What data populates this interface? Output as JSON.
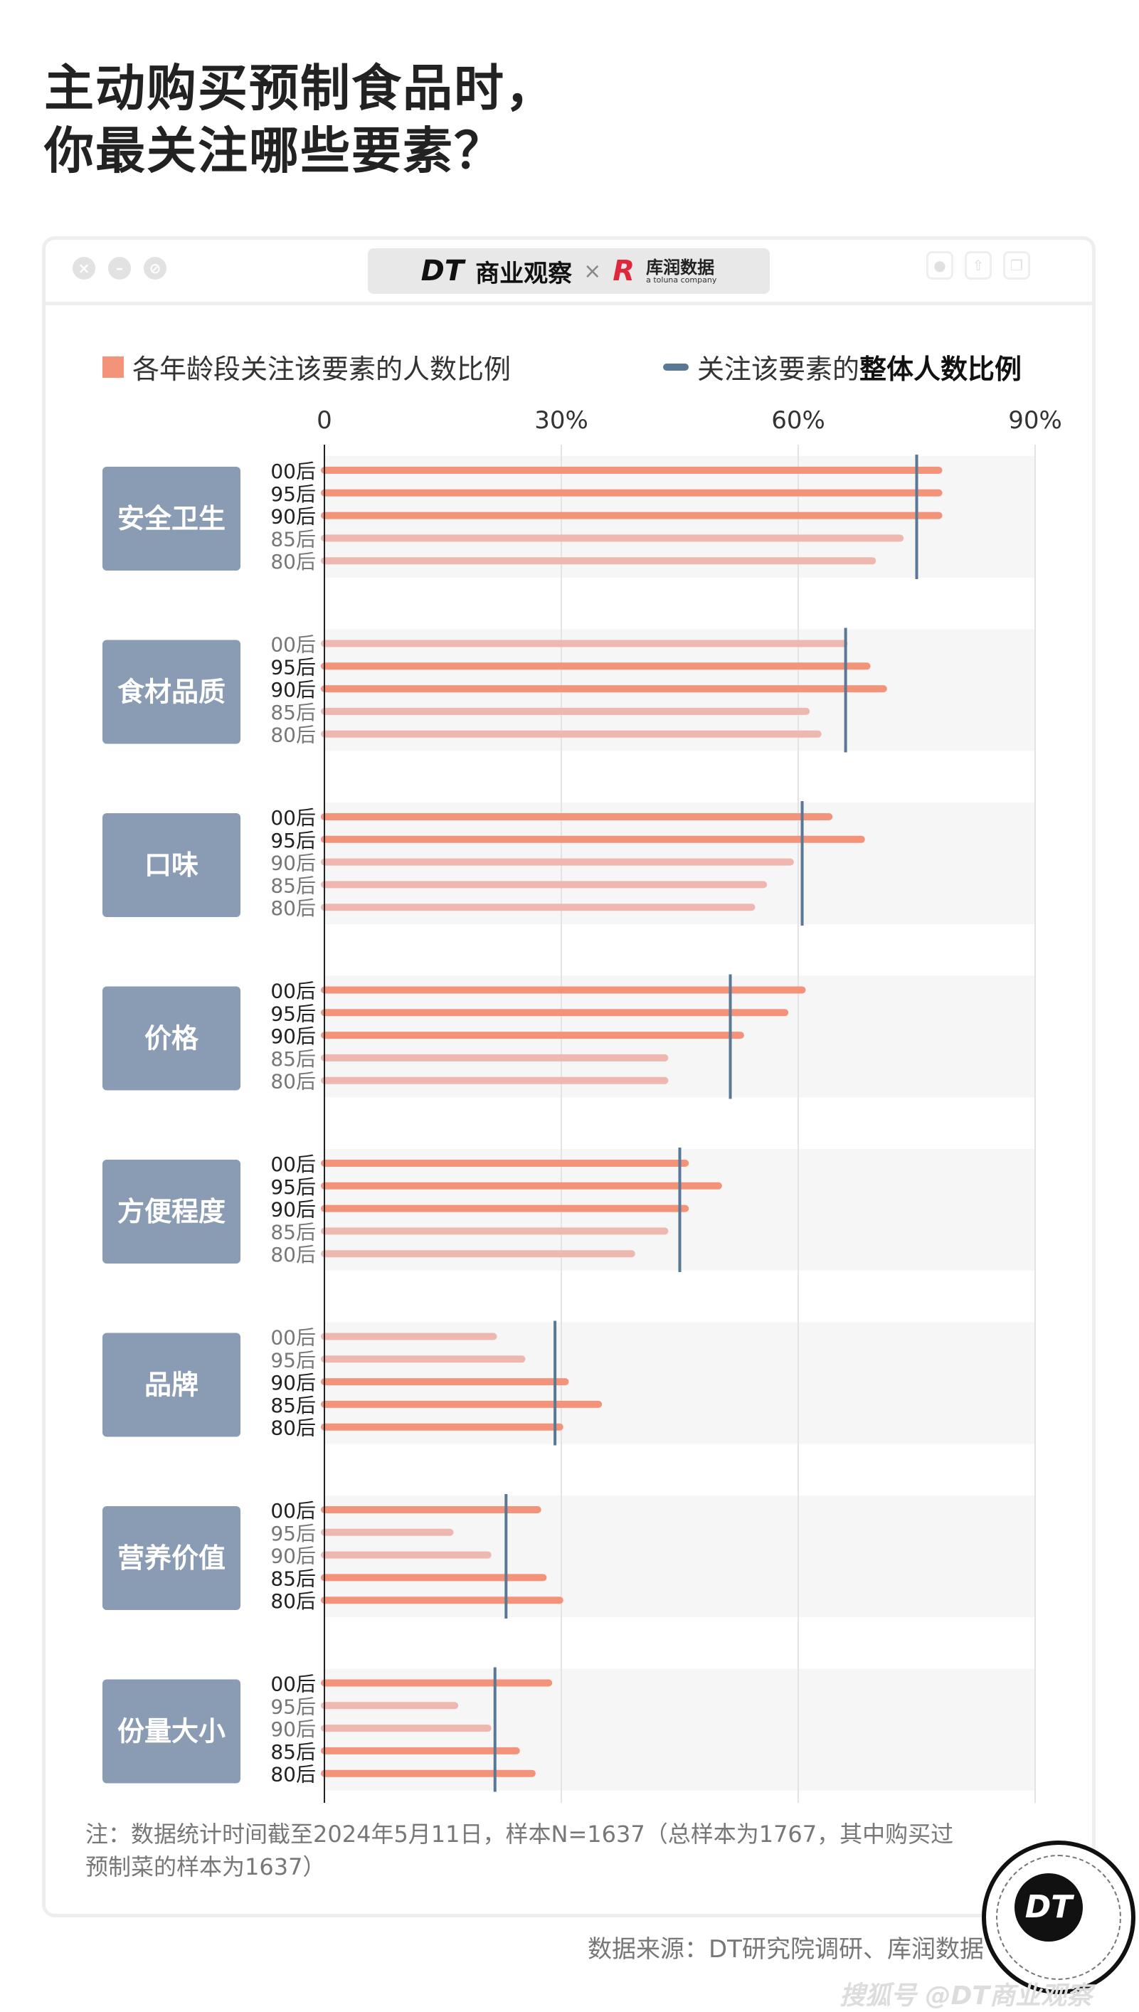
{
  "title": {
    "line1": "主动购买预制食品时，",
    "line2": "你最关注哪些要素？"
  },
  "header": {
    "dt_logo": "DT",
    "dt_name": "商业观察",
    "times": "×",
    "partner_logo": "R",
    "partner_name": "库润数据",
    "partner_tagline": "a toluna company"
  },
  "legend": {
    "bars": "各年龄段关注该要素的人数比例",
    "line_prefix": "关注该要素的",
    "line_bold": "整体人数比例"
  },
  "colors": {
    "bar_above": "#f3937a",
    "bar_below": "#eeb8b0",
    "overall_line": "#5a7896",
    "category_box": "#8a9bb4",
    "band": "#f6f6f6"
  },
  "chart_data": {
    "type": "bar",
    "orientation": "horizontal",
    "xlim": [
      0,
      90
    ],
    "x_ticks": [
      "0",
      "30%",
      "60%",
      "90%"
    ],
    "grid": true,
    "legend_position": "top",
    "age_groups": [
      "00后",
      "95后",
      "90后",
      "85后",
      "80后"
    ],
    "categories": [
      {
        "name": "安全卫生",
        "values": [
          77.8,
          77.8,
          77.8,
          72.9,
          69.4
        ],
        "overall": 75.0
      },
      {
        "name": "食材品质",
        "values": [
          65.8,
          68.7,
          70.8,
          61.0,
          62.5
        ],
        "overall": 66.0
      },
      {
        "name": "口味",
        "values": [
          63.9,
          68.0,
          59.0,
          55.6,
          54.1
        ],
        "overall": 60.5
      },
      {
        "name": "价格",
        "values": [
          60.5,
          58.3,
          52.7,
          43.1,
          43.1
        ],
        "overall": 51.4
      },
      {
        "name": "方便程度",
        "values": [
          45.7,
          49.9,
          45.7,
          43.1,
          38.9
        ],
        "overall": 45.0
      },
      {
        "name": "品牌",
        "values": [
          21.4,
          25.0,
          30.5,
          34.7,
          29.8
        ],
        "overall": 29.2
      },
      {
        "name": "营养价值",
        "values": [
          27.0,
          15.9,
          20.7,
          27.7,
          29.8
        ],
        "overall": 23.0
      },
      {
        "name": "份量大小",
        "values": [
          28.4,
          16.5,
          20.7,
          24.3,
          26.3
        ],
        "overall": 21.6
      }
    ]
  },
  "footer": {
    "note": "注：数据统计时间截至2024年5月11日，样本N=1637（总样本为1767，其中购买过预制菜的样本为1637）",
    "source": "数据来源：DT研究院调研、库润数据",
    "stamp": "DT",
    "watermark": "搜狐号 @DT商业观察"
  }
}
